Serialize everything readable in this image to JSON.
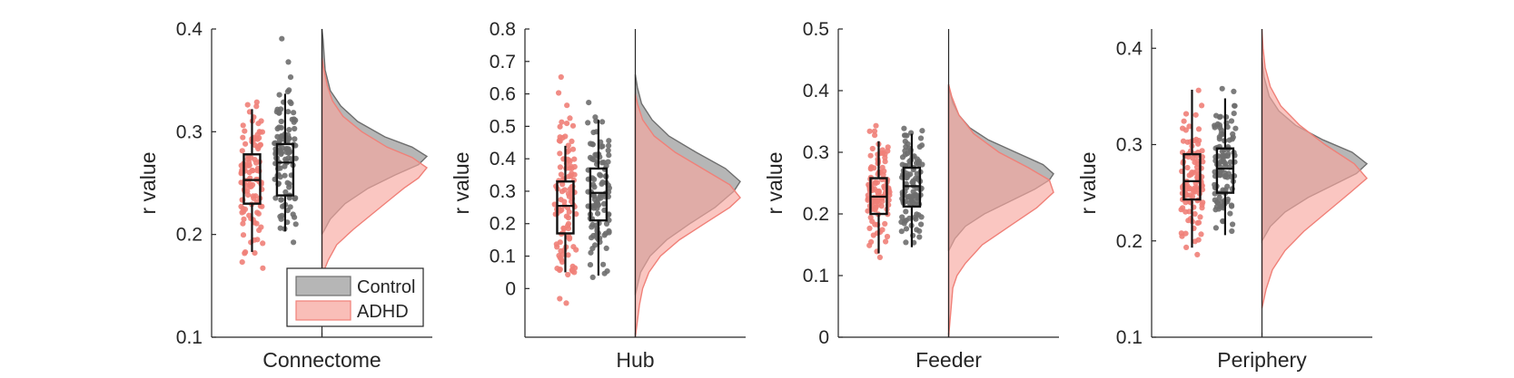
{
  "legend": {
    "entries": [
      {
        "label": "Control",
        "color": "#9e9e9e"
      },
      {
        "label": "ADHD",
        "color": "#f7a8a0"
      }
    ]
  },
  "chart_data": [
    {
      "type": "raincloud",
      "xlabel": "Connectome",
      "ylabel": "r value",
      "ylim": [
        0.1,
        0.4
      ],
      "yticks": [
        0.1,
        0.2,
        0.3,
        0.4
      ],
      "series": [
        {
          "name": "ADHD",
          "color": "#f08078",
          "box": {
            "q1": 0.23,
            "median": 0.253,
            "q3": 0.278,
            "whisker_low": 0.183,
            "whisker_high": 0.322
          },
          "density": [
            [
              0.16,
              0.0
            ],
            [
              0.175,
              0.06
            ],
            [
              0.19,
              0.14
            ],
            [
              0.205,
              0.3
            ],
            [
              0.22,
              0.48
            ],
            [
              0.235,
              0.66
            ],
            [
              0.245,
              0.78
            ],
            [
              0.255,
              0.92
            ],
            [
              0.265,
              1.0
            ],
            [
              0.275,
              0.86
            ],
            [
              0.285,
              0.62
            ],
            [
              0.3,
              0.38
            ],
            [
              0.315,
              0.2
            ],
            [
              0.33,
              0.1
            ],
            [
              0.345,
              0.05
            ],
            [
              0.36,
              0.02
            ],
            [
              0.372,
              0.0
            ]
          ]
        },
        {
          "name": "Control",
          "color": "#6e6e6e",
          "box": {
            "q1": 0.238,
            "median": 0.27,
            "q3": 0.288,
            "whisker_low": 0.203,
            "whisker_high": 0.337
          },
          "density": [
            [
              0.2,
              0.0
            ],
            [
              0.215,
              0.08
            ],
            [
              0.23,
              0.22
            ],
            [
              0.245,
              0.44
            ],
            [
              0.258,
              0.7
            ],
            [
              0.268,
              0.92
            ],
            [
              0.276,
              1.0
            ],
            [
              0.285,
              0.86
            ],
            [
              0.295,
              0.6
            ],
            [
              0.31,
              0.34
            ],
            [
              0.325,
              0.18
            ],
            [
              0.34,
              0.08
            ],
            [
              0.36,
              0.03
            ],
            [
              0.39,
              0.01
            ],
            [
              0.4,
              0.0
            ]
          ]
        }
      ]
    },
    {
      "type": "raincloud",
      "xlabel": "Hub",
      "ylabel": "r value",
      "ylim": [
        -0.15,
        0.8
      ],
      "yticks": [
        0,
        0.1,
        0.2,
        0.3,
        0.4,
        0.5,
        0.6,
        0.7,
        0.8
      ],
      "series": [
        {
          "name": "ADHD",
          "color": "#f08078",
          "box": {
            "q1": 0.17,
            "median": 0.255,
            "q3": 0.33,
            "whisker_low": 0.05,
            "whisker_high": 0.44
          },
          "density": [
            [
              -0.15,
              0.0
            ],
            [
              -0.1,
              0.02
            ],
            [
              -0.05,
              0.04
            ],
            [
              0.0,
              0.07
            ],
            [
              0.05,
              0.13
            ],
            [
              0.1,
              0.24
            ],
            [
              0.15,
              0.42
            ],
            [
              0.2,
              0.66
            ],
            [
              0.25,
              0.9
            ],
            [
              0.28,
              1.0
            ],
            [
              0.32,
              0.9
            ],
            [
              0.37,
              0.64
            ],
            [
              0.42,
              0.38
            ],
            [
              0.47,
              0.18
            ],
            [
              0.52,
              0.07
            ],
            [
              0.57,
              0.02
            ],
            [
              0.6,
              0.0
            ]
          ]
        },
        {
          "name": "Control",
          "color": "#6e6e6e",
          "box": {
            "q1": 0.21,
            "median": 0.295,
            "q3": 0.37,
            "whisker_low": 0.04,
            "whisker_high": 0.52
          },
          "density": [
            [
              -0.02,
              0.0
            ],
            [
              0.05,
              0.05
            ],
            [
              0.1,
              0.14
            ],
            [
              0.15,
              0.3
            ],
            [
              0.2,
              0.52
            ],
            [
              0.25,
              0.76
            ],
            [
              0.3,
              0.94
            ],
            [
              0.33,
              1.0
            ],
            [
              0.37,
              0.86
            ],
            [
              0.42,
              0.58
            ],
            [
              0.47,
              0.32
            ],
            [
              0.52,
              0.16
            ],
            [
              0.57,
              0.06
            ],
            [
              0.62,
              0.02
            ],
            [
              0.66,
              0.0
            ]
          ]
        }
      ]
    },
    {
      "type": "raincloud",
      "xlabel": "Feeder",
      "ylabel": "r value",
      "ylim": [
        0,
        0.5
      ],
      "yticks": [
        0,
        0.1,
        0.2,
        0.3,
        0.4,
        0.5
      ],
      "series": [
        {
          "name": "ADHD",
          "color": "#f08078",
          "box": {
            "q1": 0.2,
            "median": 0.228,
            "q3": 0.258,
            "whisker_low": 0.136,
            "whisker_high": 0.318
          },
          "density": [
            [
              0.0,
              0.0
            ],
            [
              0.04,
              0.02
            ],
            [
              0.08,
              0.04
            ],
            [
              0.1,
              0.08
            ],
            [
              0.12,
              0.16
            ],
            [
              0.15,
              0.32
            ],
            [
              0.18,
              0.58
            ],
            [
              0.21,
              0.84
            ],
            [
              0.235,
              1.0
            ],
            [
              0.255,
              0.96
            ],
            [
              0.275,
              0.76
            ],
            [
              0.3,
              0.48
            ],
            [
              0.33,
              0.24
            ],
            [
              0.36,
              0.1
            ],
            [
              0.39,
              0.03
            ],
            [
              0.41,
              0.0
            ]
          ]
        },
        {
          "name": "Control",
          "color": "#6e6e6e",
          "box": {
            "q1": 0.212,
            "median": 0.245,
            "q3": 0.275,
            "whisker_low": 0.146,
            "whisker_high": 0.33
          },
          "density": [
            [
              0.14,
              0.0
            ],
            [
              0.16,
              0.06
            ],
            [
              0.18,
              0.16
            ],
            [
              0.2,
              0.34
            ],
            [
              0.22,
              0.58
            ],
            [
              0.24,
              0.82
            ],
            [
              0.255,
              0.96
            ],
            [
              0.265,
              1.0
            ],
            [
              0.28,
              0.9
            ],
            [
              0.3,
              0.64
            ],
            [
              0.32,
              0.38
            ],
            [
              0.34,
              0.2
            ],
            [
              0.36,
              0.1
            ],
            [
              0.38,
              0.04
            ],
            [
              0.4,
              0.01
            ],
            [
              0.41,
              0.0
            ]
          ]
        }
      ]
    },
    {
      "type": "raincloud",
      "xlabel": "Periphery",
      "ylabel": "r value",
      "ylim": [
        0.1,
        0.42
      ],
      "yticks": [
        0.1,
        0.2,
        0.3,
        0.4
      ],
      "series": [
        {
          "name": "ADHD",
          "color": "#f08078",
          "box": {
            "q1": 0.243,
            "median": 0.262,
            "q3": 0.29,
            "whisker_low": 0.193,
            "whisker_high": 0.357
          },
          "density": [
            [
              0.13,
              0.0
            ],
            [
              0.15,
              0.04
            ],
            [
              0.17,
              0.1
            ],
            [
              0.19,
              0.22
            ],
            [
              0.21,
              0.4
            ],
            [
              0.23,
              0.62
            ],
            [
              0.25,
              0.84
            ],
            [
              0.265,
              1.0
            ],
            [
              0.28,
              0.88
            ],
            [
              0.3,
              0.6
            ],
            [
              0.32,
              0.36
            ],
            [
              0.34,
              0.18
            ],
            [
              0.36,
              0.08
            ],
            [
              0.38,
              0.03
            ],
            [
              0.4,
              0.01
            ],
            [
              0.42,
              0.0
            ]
          ]
        },
        {
          "name": "Control",
          "color": "#6e6e6e",
          "box": {
            "q1": 0.25,
            "median": 0.275,
            "q3": 0.296,
            "whisker_low": 0.206,
            "whisker_high": 0.348
          },
          "density": [
            [
              0.2,
              0.0
            ],
            [
              0.215,
              0.08
            ],
            [
              0.23,
              0.22
            ],
            [
              0.245,
              0.44
            ],
            [
              0.258,
              0.68
            ],
            [
              0.27,
              0.9
            ],
            [
              0.28,
              1.0
            ],
            [
              0.292,
              0.86
            ],
            [
              0.305,
              0.58
            ],
            [
              0.32,
              0.32
            ],
            [
              0.335,
              0.16
            ],
            [
              0.35,
              0.07
            ],
            [
              0.37,
              0.02
            ],
            [
              0.39,
              0.0
            ]
          ]
        }
      ]
    }
  ]
}
